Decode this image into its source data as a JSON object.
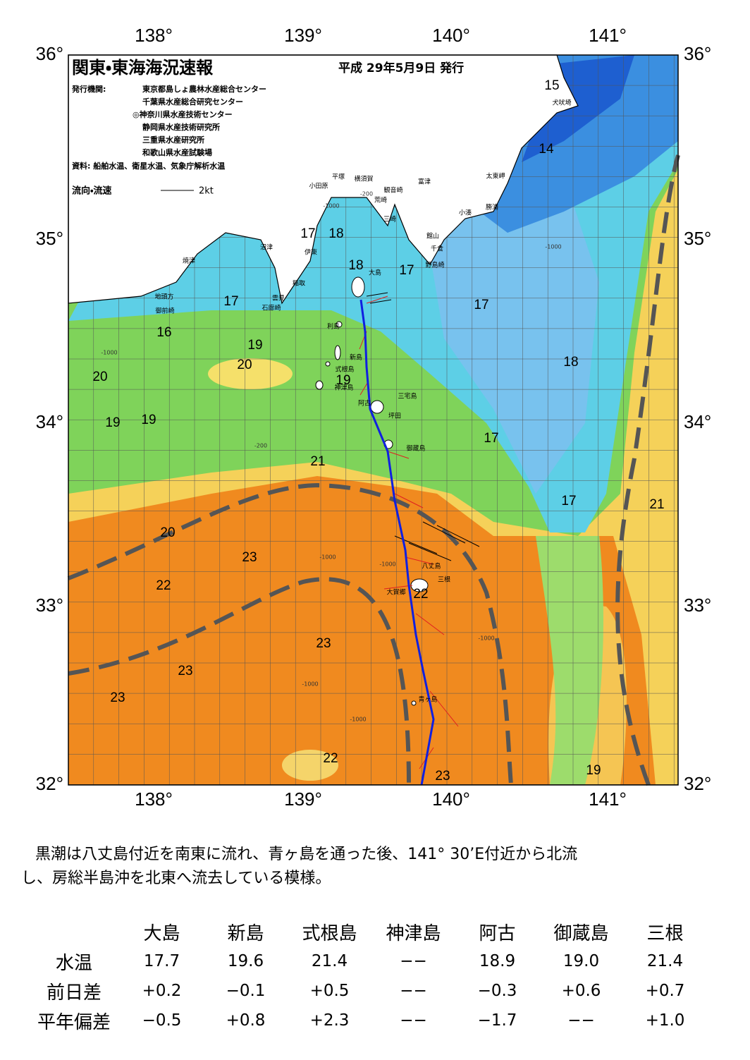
{
  "header": {
    "title": "関東・東海海況速報",
    "date": "平成 29年5月9日 発行",
    "issuer_label": "発行機関:",
    "issuers": [
      "東京都島しょ農林水産総合センター",
      "千葉県水産総合研究センター",
      "◎神奈川県水産技術センター",
      "静岡県水産技術研究所",
      "三重県水産研究所",
      "和歌山県水産試験場"
    ],
    "source": "資料: 船舶水温、衛星水温、気象庁解析水温",
    "flow_label": "流向・流速",
    "flow_scale": "2kt"
  },
  "map": {
    "lon_labels": [
      "138°",
      "139°",
      "140°",
      "141°"
    ],
    "lat_labels": [
      "36°",
      "35°",
      "34°",
      "33°",
      "32°"
    ],
    "place_names": [
      "犬吠埼",
      "太東岬",
      "勝浦",
      "小湊",
      "富津",
      "横須賀",
      "平塚",
      "小田原",
      "観音崎",
      "荒崎",
      "三崎",
      "館山",
      "千倉",
      "野島崎",
      "沼津",
      "伊東",
      "焼津",
      "大島",
      "稲取",
      "雲見",
      "石廊崎",
      "地頭方",
      "御前崎",
      "利島",
      "新島",
      "式根島",
      "神津島",
      "三宅島",
      "阿古",
      "坪田",
      "御蔵島",
      "八丈島",
      "三根",
      "大賀郷",
      "青ヶ島"
    ],
    "temperature_labels": [
      "15",
      "14",
      "17",
      "18",
      "18",
      "17",
      "17",
      "17",
      "16",
      "19",
      "20",
      "18",
      "20",
      "19",
      "19",
      "19",
      "17",
      "21",
      "17",
      "21",
      "20",
      "23",
      "22",
      "22",
      "23",
      "23",
      "23",
      "22",
      "23",
      "19"
    ],
    "depth_labels": [
      "-200",
      "-1000",
      "-1000",
      "-1000",
      "-200",
      "-1000",
      "-1000",
      "-1000",
      "-1000",
      "-1000"
    ]
  },
  "summary": [
    "黒潮は八丈島付近を南東に流れ、青ヶ島を通った後、141° 30’E付近から北流",
    "し、房総半島沖を北東へ流去している模様。"
  ],
  "table": {
    "columns": [
      "大島",
      "新島",
      "式根島",
      "神津島",
      "阿古",
      "御蔵島",
      "三根"
    ],
    "rows": [
      {
        "label": "水温",
        "cells": [
          "17.7",
          "19.6",
          "21.4",
          "−−",
          "18.9",
          "19.0",
          "21.4"
        ]
      },
      {
        "label": "前日差",
        "cells": [
          "+0.2",
          "−0.1",
          "+0.5",
          "−−",
          "−0.3",
          "+0.6",
          "+0.7"
        ]
      },
      {
        "label": "平年偏差",
        "cells": [
          "−0.5",
          "+0.8",
          "+2.3",
          "−−",
          "−1.7",
          "−−",
          "+1.0"
        ]
      }
    ]
  }
}
